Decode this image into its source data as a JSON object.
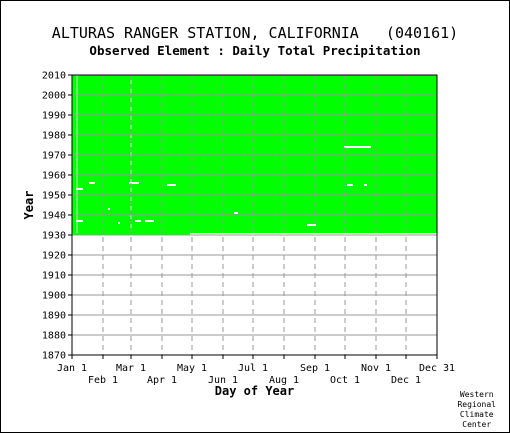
{
  "title": "ALTURAS RANGER STATION, CALIFORNIA   (040161)",
  "subtitle": "Observed Element : Daily Total Precipitation",
  "credit": [
    "Western",
    "Regional",
    "Climate",
    "Center"
  ],
  "chart_data": {
    "type": "heatmap",
    "xlabel": "Day of Year",
    "ylabel": "Year",
    "x_ticks_upper": [
      "Jan 1",
      "Mar 1",
      "May 1",
      "Jul 1",
      "Sep 1",
      "Nov 1",
      "Dec 31"
    ],
    "x_ticks_lower": [
      "Feb 1",
      "Apr 1",
      "Jun 1",
      "Aug 1",
      "Oct 1",
      "Dec 1"
    ],
    "y_ticks": [
      "2010",
      "2000",
      "1990",
      "1980",
      "1970",
      "1960",
      "1950",
      "1940",
      "1930",
      "1920",
      "1910",
      "1900",
      "1890",
      "1880",
      "1870"
    ],
    "ylim": [
      1870,
      2010
    ],
    "xlim": [
      1,
      366
    ],
    "grid": true,
    "colors": {
      "observed": "#00ff00",
      "missing": "#ffffff",
      "grid": "#999999"
    },
    "observed_range": {
      "year_start": 1931,
      "year_end": 2010,
      "first_day_1930": 1,
      "last_day_1930": 119
    },
    "missing_records": [
      {
        "year": 1937,
        "day_start": 5,
        "day_end": 12
      },
      {
        "year": 1937,
        "day_start": 64,
        "day_end": 70
      },
      {
        "year": 1937,
        "day_start": 74,
        "day_end": 83
      },
      {
        "year": 1953,
        "day_start": 5,
        "day_end": 12
      },
      {
        "year": 1956,
        "day_start": 18,
        "day_end": 24
      },
      {
        "year": 1956,
        "day_start": 58,
        "day_end": 68
      },
      {
        "year": 1955,
        "day_start": 96,
        "day_end": 105
      },
      {
        "year": 1941,
        "day_start": 163,
        "day_end": 167
      },
      {
        "year": 1935,
        "day_start": 236,
        "day_end": 245
      },
      {
        "year": 1974,
        "day_start": 273,
        "day_end": 300
      },
      {
        "year": 1955,
        "day_start": 276,
        "day_end": 282
      },
      {
        "year": 1955,
        "day_start": 293,
        "day_end": 296
      },
      {
        "year": 1943,
        "day_start": 37,
        "day_end": 39
      },
      {
        "year": 1936,
        "day_start": 47,
        "day_end": 49
      }
    ],
    "missing_days": [
      {
        "day": 6,
        "year_start": 1931,
        "year_end": 2010
      },
      {
        "day": 60,
        "year_start": 1931,
        "year_end": 2010
      }
    ]
  }
}
